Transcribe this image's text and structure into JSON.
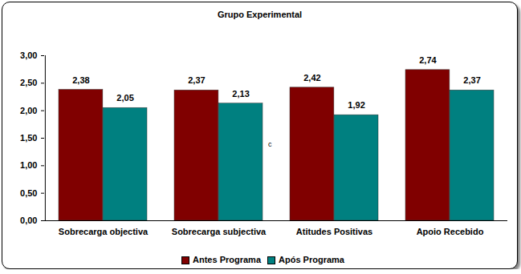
{
  "chart_data": {
    "type": "bar",
    "title": "Grupo Experimental",
    "categories": [
      "Sobrecarga objectiva",
      "Sobrecarga subjectiva",
      "Atitudes Positivas",
      "Apoio Recebido"
    ],
    "series": [
      {
        "name": "Antes Programa",
        "color": "#800000",
        "values": [
          2.38,
          2.37,
          2.42,
          2.74
        ],
        "value_labels": [
          "2,38",
          "2,37",
          "2,42",
          "2,74"
        ]
      },
      {
        "name": "Após Programa",
        "color": "#008080",
        "values": [
          2.05,
          2.13,
          1.92,
          2.37
        ],
        "value_labels": [
          "2,05",
          "2,13",
          "1,92",
          "2,37"
        ]
      }
    ],
    "ylim": [
      0,
      3
    ],
    "yticks": [
      {
        "value": 0,
        "label": "0,00"
      },
      {
        "value": 0.5,
        "label": "0,50"
      },
      {
        "value": 1,
        "label": "1,00"
      },
      {
        "value": 1.5,
        "label": "1,50"
      },
      {
        "value": 2,
        "label": "2,00"
      },
      {
        "value": 2.5,
        "label": "2,50"
      },
      {
        "value": 3,
        "label": "3,00"
      }
    ],
    "grid": false,
    "data_labels": true,
    "legend": "bottom",
    "annotations": [
      "c"
    ]
  }
}
